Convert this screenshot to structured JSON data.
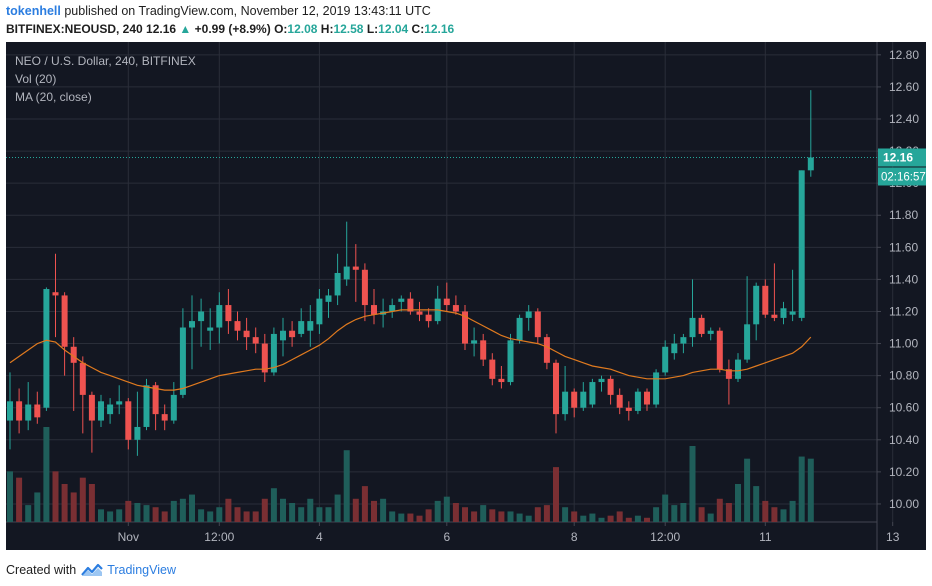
{
  "header": {
    "author": "tokenhell",
    "published_text": "published on TradingView.com, November 12, 2019 13:43:11 UTC",
    "symbol": "BITFINEX:NEOUSD, 240",
    "last": "12.16",
    "change": "+0.99 (+8.9%)",
    "o_label": "O:",
    "o_value": "12.08",
    "h_label": "H:",
    "h_value": "12.58",
    "l_label": "L:",
    "l_value": "12.04",
    "c_label": "C:",
    "c_value": "12.16",
    "up_color": "#26a69a"
  },
  "legend": {
    "title": "NEO / U.S. Dollar, 240, BITFINEX",
    "vol": "Vol (20)",
    "ma": "MA (20, close)"
  },
  "footer": {
    "created_with": "Created with",
    "brand": "TradingView"
  },
  "chart_data": {
    "type": "candlestick",
    "colors": {
      "background": "#131722",
      "up": "#26a69a",
      "down": "#ef5350",
      "ma": "#e07a1f",
      "vol_up": "#1f5e5a",
      "vol_down": "#7a2f33",
      "grid": "#2a2e39",
      "text": "#b2b5be"
    },
    "y_axis": {
      "ticks": [
        "12.80",
        "12.60",
        "12.40",
        "12.20",
        "12.00",
        "11.80",
        "11.60",
        "11.40",
        "11.20",
        "11.00",
        "10.80",
        "10.60",
        "10.40",
        "10.20",
        "10.00"
      ],
      "range": [
        9.9,
        12.88
      ]
    },
    "x_axis": {
      "ticks": [
        "Nov",
        "12:00",
        "4",
        "6",
        "8",
        "12:00",
        "11",
        "13"
      ],
      "tick_bar_index": [
        13,
        23,
        34,
        48,
        62,
        72,
        83,
        97
      ]
    },
    "last_price_label": "12.16",
    "countdown_label": "02:16:57",
    "candles": [
      {
        "o": 10.52,
        "h": 10.82,
        "l": 10.34,
        "c": 10.64
      },
      {
        "o": 10.64,
        "h": 10.72,
        "l": 10.44,
        "c": 10.52
      },
      {
        "o": 10.52,
        "h": 10.76,
        "l": 10.46,
        "c": 10.62
      },
      {
        "o": 10.62,
        "h": 10.7,
        "l": 10.5,
        "c": 10.54
      },
      {
        "o": 10.6,
        "h": 11.35,
        "l": 10.58,
        "c": 11.34
      },
      {
        "o": 11.32,
        "h": 11.56,
        "l": 11.04,
        "c": 11.3
      },
      {
        "o": 11.3,
        "h": 11.32,
        "l": 10.8,
        "c": 10.98
      },
      {
        "o": 10.98,
        "h": 11.04,
        "l": 10.58,
        "c": 10.88
      },
      {
        "o": 10.88,
        "h": 10.92,
        "l": 10.44,
        "c": 10.68
      },
      {
        "o": 10.68,
        "h": 10.7,
        "l": 10.32,
        "c": 10.52
      },
      {
        "o": 10.52,
        "h": 10.68,
        "l": 10.48,
        "c": 10.64
      },
      {
        "o": 10.56,
        "h": 10.66,
        "l": 10.5,
        "c": 10.62
      },
      {
        "o": 10.62,
        "h": 10.74,
        "l": 10.56,
        "c": 10.64
      },
      {
        "o": 10.64,
        "h": 10.66,
        "l": 10.34,
        "c": 10.4
      },
      {
        "o": 10.4,
        "h": 10.7,
        "l": 10.3,
        "c": 10.48
      },
      {
        "o": 10.48,
        "h": 10.78,
        "l": 10.46,
        "c": 10.74
      },
      {
        "o": 10.74,
        "h": 10.76,
        "l": 10.46,
        "c": 10.56
      },
      {
        "o": 10.56,
        "h": 10.62,
        "l": 10.46,
        "c": 10.52
      },
      {
        "o": 10.52,
        "h": 10.76,
        "l": 10.5,
        "c": 10.68
      },
      {
        "o": 10.68,
        "h": 11.22,
        "l": 10.66,
        "c": 11.1
      },
      {
        "o": 11.1,
        "h": 11.3,
        "l": 10.84,
        "c": 11.14
      },
      {
        "o": 11.14,
        "h": 11.28,
        "l": 10.98,
        "c": 11.2
      },
      {
        "o": 11.08,
        "h": 11.22,
        "l": 10.96,
        "c": 11.1
      },
      {
        "o": 11.1,
        "h": 11.32,
        "l": 11.0,
        "c": 11.24
      },
      {
        "o": 11.24,
        "h": 11.34,
        "l": 11.06,
        "c": 11.14
      },
      {
        "o": 11.14,
        "h": 11.2,
        "l": 11.02,
        "c": 11.08
      },
      {
        "o": 11.08,
        "h": 11.16,
        "l": 10.96,
        "c": 11.04
      },
      {
        "o": 11.04,
        "h": 11.1,
        "l": 10.94,
        "c": 11.0
      },
      {
        "o": 11.0,
        "h": 11.06,
        "l": 10.76,
        "c": 10.82
      },
      {
        "o": 10.82,
        "h": 11.1,
        "l": 10.8,
        "c": 11.06
      },
      {
        "o": 11.02,
        "h": 11.16,
        "l": 10.92,
        "c": 11.08
      },
      {
        "o": 11.08,
        "h": 11.14,
        "l": 10.98,
        "c": 11.04
      },
      {
        "o": 11.06,
        "h": 11.22,
        "l": 11.04,
        "c": 11.14
      },
      {
        "o": 11.08,
        "h": 11.24,
        "l": 10.98,
        "c": 11.14
      },
      {
        "o": 11.12,
        "h": 11.34,
        "l": 11.06,
        "c": 11.28
      },
      {
        "o": 11.26,
        "h": 11.34,
        "l": 11.16,
        "c": 11.3
      },
      {
        "o": 11.3,
        "h": 11.56,
        "l": 11.24,
        "c": 11.44
      },
      {
        "o": 11.4,
        "h": 11.76,
        "l": 11.36,
        "c": 11.48
      },
      {
        "o": 11.48,
        "h": 11.62,
        "l": 11.26,
        "c": 11.46
      },
      {
        "o": 11.46,
        "h": 11.5,
        "l": 11.14,
        "c": 11.24
      },
      {
        "o": 11.24,
        "h": 11.34,
        "l": 11.12,
        "c": 11.18
      },
      {
        "o": 11.18,
        "h": 11.28,
        "l": 11.1,
        "c": 11.2
      },
      {
        "o": 11.2,
        "h": 11.28,
        "l": 11.16,
        "c": 11.24
      },
      {
        "o": 11.26,
        "h": 11.3,
        "l": 11.2,
        "c": 11.28
      },
      {
        "o": 11.28,
        "h": 11.32,
        "l": 11.18,
        "c": 11.2
      },
      {
        "o": 11.2,
        "h": 11.26,
        "l": 11.14,
        "c": 11.18
      },
      {
        "o": 11.18,
        "h": 11.22,
        "l": 11.1,
        "c": 11.14
      },
      {
        "o": 11.14,
        "h": 11.36,
        "l": 11.12,
        "c": 11.28
      },
      {
        "o": 11.28,
        "h": 11.38,
        "l": 11.2,
        "c": 11.24
      },
      {
        "o": 11.24,
        "h": 11.3,
        "l": 11.18,
        "c": 11.2
      },
      {
        "o": 11.2,
        "h": 11.24,
        "l": 10.96,
        "c": 11.0
      },
      {
        "o": 11.0,
        "h": 11.1,
        "l": 10.92,
        "c": 11.02
      },
      {
        "o": 11.02,
        "h": 11.06,
        "l": 10.86,
        "c": 10.9
      },
      {
        "o": 10.9,
        "h": 10.94,
        "l": 10.74,
        "c": 10.78
      },
      {
        "o": 10.78,
        "h": 10.86,
        "l": 10.72,
        "c": 10.76
      },
      {
        "o": 10.76,
        "h": 11.06,
        "l": 10.74,
        "c": 11.02
      },
      {
        "o": 11.02,
        "h": 11.18,
        "l": 11.0,
        "c": 11.16
      },
      {
        "o": 11.16,
        "h": 11.24,
        "l": 11.08,
        "c": 11.2
      },
      {
        "o": 11.2,
        "h": 11.22,
        "l": 11.0,
        "c": 11.04
      },
      {
        "o": 11.04,
        "h": 11.06,
        "l": 10.84,
        "c": 10.88
      },
      {
        "o": 10.88,
        "h": 10.9,
        "l": 10.44,
        "c": 10.56
      },
      {
        "o": 10.56,
        "h": 10.86,
        "l": 10.52,
        "c": 10.7
      },
      {
        "o": 10.7,
        "h": 10.72,
        "l": 10.54,
        "c": 10.6
      },
      {
        "o": 10.6,
        "h": 10.76,
        "l": 10.58,
        "c": 10.7
      },
      {
        "o": 10.62,
        "h": 10.78,
        "l": 10.6,
        "c": 10.76
      },
      {
        "o": 10.76,
        "h": 10.8,
        "l": 10.7,
        "c": 10.78
      },
      {
        "o": 10.78,
        "h": 10.8,
        "l": 10.62,
        "c": 10.68
      },
      {
        "o": 10.68,
        "h": 10.72,
        "l": 10.56,
        "c": 10.6
      },
      {
        "o": 10.6,
        "h": 10.64,
        "l": 10.52,
        "c": 10.58
      },
      {
        "o": 10.58,
        "h": 10.72,
        "l": 10.56,
        "c": 10.7
      },
      {
        "o": 10.7,
        "h": 10.72,
        "l": 10.58,
        "c": 10.62
      },
      {
        "o": 10.62,
        "h": 10.84,
        "l": 10.6,
        "c": 10.82
      },
      {
        "o": 10.82,
        "h": 11.02,
        "l": 10.8,
        "c": 10.98
      },
      {
        "o": 10.94,
        "h": 11.06,
        "l": 10.9,
        "c": 11.0
      },
      {
        "o": 11.0,
        "h": 11.06,
        "l": 10.94,
        "c": 11.04
      },
      {
        "o": 11.04,
        "h": 11.4,
        "l": 10.98,
        "c": 11.16
      },
      {
        "o": 11.16,
        "h": 11.18,
        "l": 11.04,
        "c": 11.06
      },
      {
        "o": 11.06,
        "h": 11.1,
        "l": 11.02,
        "c": 11.08
      },
      {
        "o": 11.08,
        "h": 11.1,
        "l": 10.82,
        "c": 10.84
      },
      {
        "o": 10.84,
        "h": 10.9,
        "l": 10.62,
        "c": 10.78
      },
      {
        "o": 10.78,
        "h": 10.94,
        "l": 10.76,
        "c": 10.9
      },
      {
        "o": 10.9,
        "h": 11.42,
        "l": 10.88,
        "c": 11.12
      },
      {
        "o": 11.12,
        "h": 11.38,
        "l": 11.02,
        "c": 11.36
      },
      {
        "o": 11.36,
        "h": 11.4,
        "l": 11.16,
        "c": 11.18
      },
      {
        "o": 11.18,
        "h": 11.5,
        "l": 11.14,
        "c": 11.16
      },
      {
        "o": 11.16,
        "h": 11.26,
        "l": 11.12,
        "c": 11.22
      },
      {
        "o": 11.18,
        "h": 11.46,
        "l": 11.14,
        "c": 11.2
      },
      {
        "o": 11.16,
        "h": 12.08,
        "l": 11.14,
        "c": 12.08
      },
      {
        "o": 12.08,
        "h": 12.58,
        "l": 12.04,
        "c": 12.16
      }
    ],
    "volume": [
      {
        "v": 0.24,
        "up": true
      },
      {
        "v": 0.21,
        "up": false
      },
      {
        "v": 0.08,
        "up": true
      },
      {
        "v": 0.14,
        "up": true
      },
      {
        "v": 0.45,
        "up": true
      },
      {
        "v": 0.24,
        "up": false
      },
      {
        "v": 0.18,
        "up": false
      },
      {
        "v": 0.14,
        "up": false
      },
      {
        "v": 0.21,
        "up": false
      },
      {
        "v": 0.18,
        "up": false
      },
      {
        "v": 0.06,
        "up": true
      },
      {
        "v": 0.05,
        "up": true
      },
      {
        "v": 0.06,
        "up": true
      },
      {
        "v": 0.1,
        "up": false
      },
      {
        "v": 0.09,
        "up": true
      },
      {
        "v": 0.08,
        "up": true
      },
      {
        "v": 0.07,
        "up": false
      },
      {
        "v": 0.05,
        "up": false
      },
      {
        "v": 0.1,
        "up": true
      },
      {
        "v": 0.11,
        "up": true
      },
      {
        "v": 0.13,
        "up": true
      },
      {
        "v": 0.06,
        "up": true
      },
      {
        "v": 0.05,
        "up": true
      },
      {
        "v": 0.07,
        "up": true
      },
      {
        "v": 0.11,
        "up": false
      },
      {
        "v": 0.07,
        "up": false
      },
      {
        "v": 0.05,
        "up": false
      },
      {
        "v": 0.05,
        "up": false
      },
      {
        "v": 0.11,
        "up": false
      },
      {
        "v": 0.16,
        "up": true
      },
      {
        "v": 0.11,
        "up": true
      },
      {
        "v": 0.09,
        "up": true
      },
      {
        "v": 0.07,
        "up": true
      },
      {
        "v": 0.11,
        "up": true
      },
      {
        "v": 0.07,
        "up": true
      },
      {
        "v": 0.07,
        "up": true
      },
      {
        "v": 0.13,
        "up": true
      },
      {
        "v": 0.34,
        "up": true
      },
      {
        "v": 0.11,
        "up": false
      },
      {
        "v": 0.17,
        "up": false
      },
      {
        "v": 0.1,
        "up": false
      },
      {
        "v": 0.11,
        "up": true
      },
      {
        "v": 0.05,
        "up": true
      },
      {
        "v": 0.04,
        "up": true
      },
      {
        "v": 0.04,
        "up": false
      },
      {
        "v": 0.03,
        "up": false
      },
      {
        "v": 0.06,
        "up": false
      },
      {
        "v": 0.1,
        "up": true
      },
      {
        "v": 0.12,
        "up": true
      },
      {
        "v": 0.09,
        "up": false
      },
      {
        "v": 0.07,
        "up": false
      },
      {
        "v": 0.05,
        "up": false
      },
      {
        "v": 0.08,
        "up": true
      },
      {
        "v": 0.06,
        "up": false
      },
      {
        "v": 0.05,
        "up": false
      },
      {
        "v": 0.05,
        "up": true
      },
      {
        "v": 0.04,
        "up": true
      },
      {
        "v": 0.03,
        "up": true
      },
      {
        "v": 0.07,
        "up": false
      },
      {
        "v": 0.08,
        "up": false
      },
      {
        "v": 0.26,
        "up": false
      },
      {
        "v": 0.07,
        "up": true
      },
      {
        "v": 0.05,
        "up": false
      },
      {
        "v": 0.03,
        "up": true
      },
      {
        "v": 0.04,
        "up": true
      },
      {
        "v": 0.02,
        "up": true
      },
      {
        "v": 0.03,
        "up": false
      },
      {
        "v": 0.05,
        "up": false
      },
      {
        "v": 0.02,
        "up": false
      },
      {
        "v": 0.03,
        "up": true
      },
      {
        "v": 0.02,
        "up": false
      },
      {
        "v": 0.07,
        "up": true
      },
      {
        "v": 0.13,
        "up": true
      },
      {
        "v": 0.08,
        "up": true
      },
      {
        "v": 0.09,
        "up": true
      },
      {
        "v": 0.36,
        "up": true
      },
      {
        "v": 0.07,
        "up": false
      },
      {
        "v": 0.04,
        "up": true
      },
      {
        "v": 0.11,
        "up": false
      },
      {
        "v": 0.09,
        "up": false
      },
      {
        "v": 0.18,
        "up": true
      },
      {
        "v": 0.3,
        "up": true
      },
      {
        "v": 0.17,
        "up": true
      },
      {
        "v": 0.1,
        "up": false
      },
      {
        "v": 0.07,
        "up": false
      },
      {
        "v": 0.06,
        "up": true
      },
      {
        "v": 0.1,
        "up": true
      },
      {
        "v": 0.31,
        "up": true
      },
      {
        "v": 0.3,
        "up": true
      }
    ],
    "ma": [
      10.88,
      10.92,
      10.96,
      11.0,
      11.02,
      11.01,
      10.96,
      10.92,
      10.88,
      10.85,
      10.82,
      10.8,
      10.78,
      10.76,
      10.74,
      10.73,
      10.72,
      10.71,
      10.71,
      10.72,
      10.74,
      10.76,
      10.78,
      10.8,
      10.81,
      10.82,
      10.83,
      10.84,
      10.84,
      10.85,
      10.87,
      10.9,
      10.93,
      10.96,
      10.99,
      11.03,
      11.08,
      11.12,
      11.15,
      11.17,
      11.18,
      11.19,
      11.2,
      11.21,
      11.21,
      11.21,
      11.21,
      11.21,
      11.2,
      11.19,
      11.17,
      11.14,
      11.11,
      11.08,
      11.05,
      11.03,
      11.02,
      11.01,
      11.0,
      10.98,
      10.95,
      10.92,
      10.9,
      10.88,
      10.86,
      10.85,
      10.84,
      10.82,
      10.8,
      10.79,
      10.78,
      10.78,
      10.78,
      10.79,
      10.8,
      10.82,
      10.83,
      10.84,
      10.84,
      10.83,
      10.83,
      10.84,
      10.86,
      10.88,
      10.9,
      10.92,
      10.94,
      10.98,
      11.04
    ]
  }
}
